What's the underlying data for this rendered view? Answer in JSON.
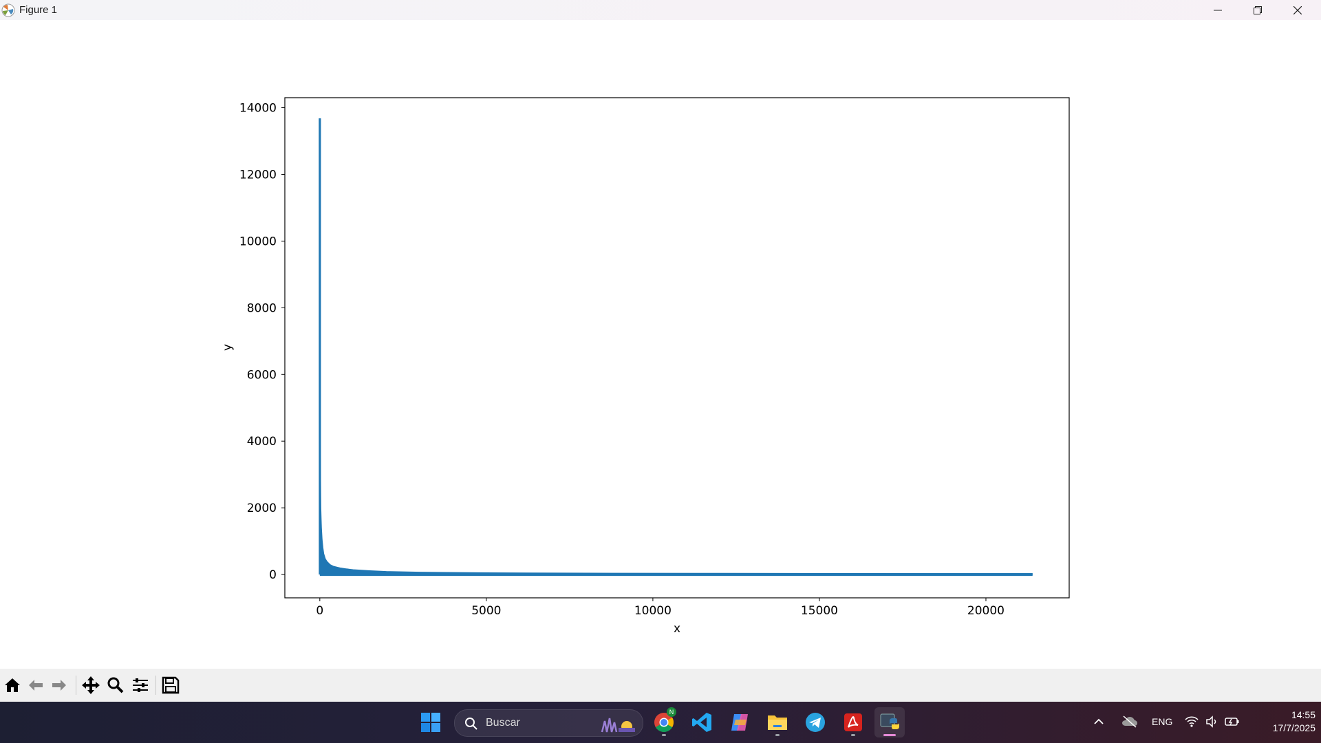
{
  "window": {
    "title": "Figure 1"
  },
  "chart_data": {
    "type": "area",
    "xlabel": "x",
    "ylabel": "y",
    "xlim": [
      -1050,
      22500
    ],
    "ylim": [
      -700,
      14300
    ],
    "xticks": [
      0,
      5000,
      10000,
      15000,
      20000
    ],
    "yticks": [
      0,
      2000,
      4000,
      6000,
      8000,
      10000,
      12000,
      14000
    ],
    "grid": false,
    "color": "#1f77b4",
    "series": [
      {
        "x": [
          1,
          2,
          3,
          5,
          8,
          12,
          20,
          30,
          50,
          75,
          100,
          150,
          200,
          300,
          400,
          600,
          800,
          1000,
          1500,
          2000,
          3000,
          5000,
          8000,
          12000,
          16000,
          21400
        ],
        "values": [
          13680,
          7000,
          4100,
          2800,
          2400,
          2000,
          1700,
          1400,
          1050,
          800,
          620,
          460,
          380,
          280,
          230,
          180,
          150,
          125,
          95,
          72,
          50,
          32,
          22,
          16,
          12,
          9
        ]
      }
    ]
  },
  "toolbar": {
    "buttons": [
      {
        "name": "home-button",
        "icon": "home-icon"
      },
      {
        "name": "back-button",
        "icon": "arrow-left-icon"
      },
      {
        "name": "forward-button",
        "icon": "arrow-right-icon"
      },
      {
        "name": "pan-button",
        "icon": "move-icon"
      },
      {
        "name": "zoom-button",
        "icon": "magnifier-icon"
      },
      {
        "name": "configure-subplots-button",
        "icon": "sliders-icon"
      },
      {
        "name": "save-button",
        "icon": "floppy-disk-icon"
      }
    ]
  },
  "taskbar": {
    "search_placeholder": "Buscar",
    "chrome_badge": "N",
    "language": "ENG",
    "time": "14:55",
    "date": "17/7/2025"
  }
}
